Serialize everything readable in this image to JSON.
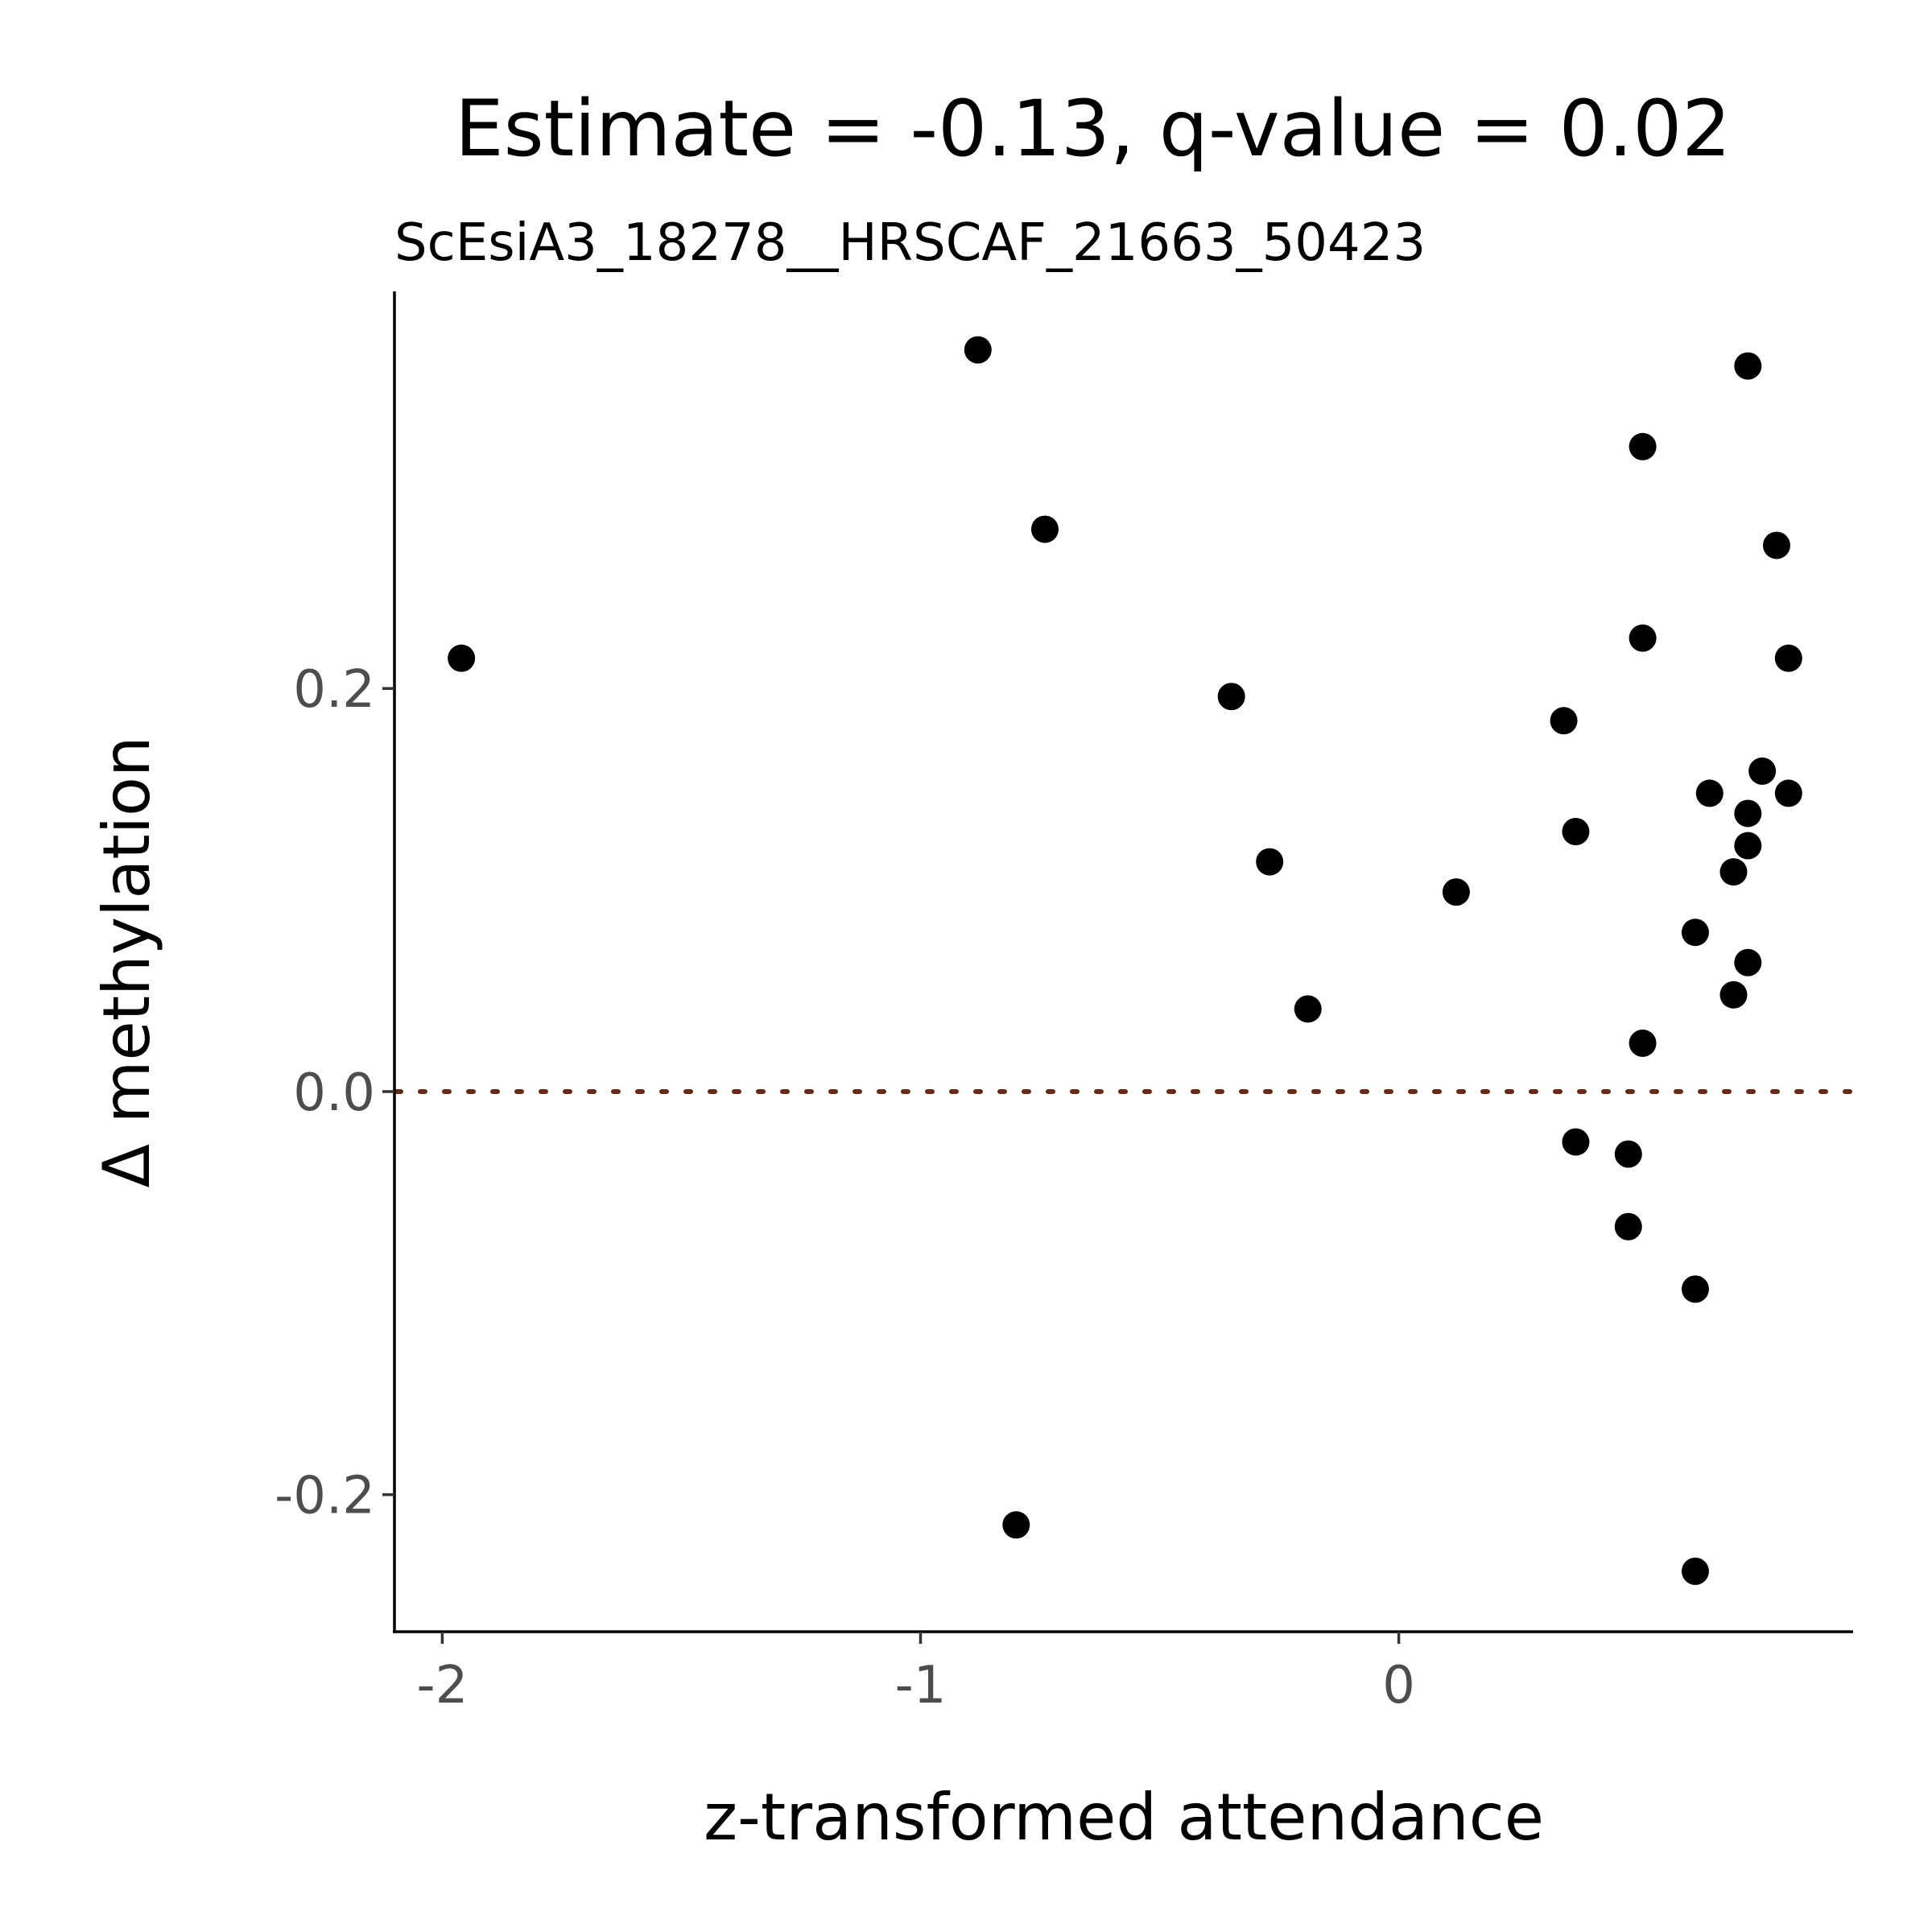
{
  "chart_data": {
    "type": "scatter",
    "title": "Estimate = -0.13, q-value = 0.02",
    "subtitle": "ScEsiA3_18278__HRSCAF_21663_50423",
    "xlabel": "z-transformed attendance",
    "ylabel": "Δ methylation",
    "xlim": [
      -2.1,
      0.95
    ],
    "ylim": [
      -0.268,
      0.397
    ],
    "x_ticks": [
      {
        "value": -2,
        "label": "-2"
      },
      {
        "value": -1,
        "label": "-1"
      },
      {
        "value": 0,
        "label": "0"
      }
    ],
    "y_ticks": [
      {
        "value": -0.2,
        "label": "-0.2"
      },
      {
        "value": 0.0,
        "label": "0.0"
      },
      {
        "value": 0.2,
        "label": "0.2"
      }
    ],
    "reference_line": {
      "y": 0,
      "style": "dotted",
      "color": "#6b2a12"
    },
    "grid": false,
    "legend": "none",
    "point_color": "#000000",
    "points": [
      {
        "x": -1.96,
        "y": 0.215
      },
      {
        "x": -0.88,
        "y": 0.368
      },
      {
        "x": -0.74,
        "y": 0.279
      },
      {
        "x": -0.8,
        "y": -0.215
      },
      {
        "x": -0.35,
        "y": 0.196
      },
      {
        "x": -0.27,
        "y": 0.114
      },
      {
        "x": -0.19,
        "y": 0.041
      },
      {
        "x": 0.12,
        "y": 0.099
      },
      {
        "x": 0.345,
        "y": 0.184
      },
      {
        "x": 0.37,
        "y": 0.129
      },
      {
        "x": 0.37,
        "y": -0.025
      },
      {
        "x": 0.48,
        "y": -0.031
      },
      {
        "x": 0.48,
        "y": -0.067
      },
      {
        "x": 0.51,
        "y": 0.32
      },
      {
        "x": 0.51,
        "y": 0.225
      },
      {
        "x": 0.51,
        "y": 0.024
      },
      {
        "x": 0.62,
        "y": 0.079
      },
      {
        "x": 0.62,
        "y": -0.098
      },
      {
        "x": 0.62,
        "y": -0.238
      },
      {
        "x": 0.65,
        "y": 0.148
      },
      {
        "x": 0.7,
        "y": 0.109
      },
      {
        "x": 0.7,
        "y": 0.048
      },
      {
        "x": 0.73,
        "y": 0.36
      },
      {
        "x": 0.73,
        "y": 0.138
      },
      {
        "x": 0.73,
        "y": 0.122
      },
      {
        "x": 0.73,
        "y": 0.064
      },
      {
        "x": 0.76,
        "y": 0.159
      },
      {
        "x": 0.79,
        "y": 0.271
      },
      {
        "x": 0.815,
        "y": 0.215
      },
      {
        "x": 0.815,
        "y": 0.148
      }
    ]
  }
}
